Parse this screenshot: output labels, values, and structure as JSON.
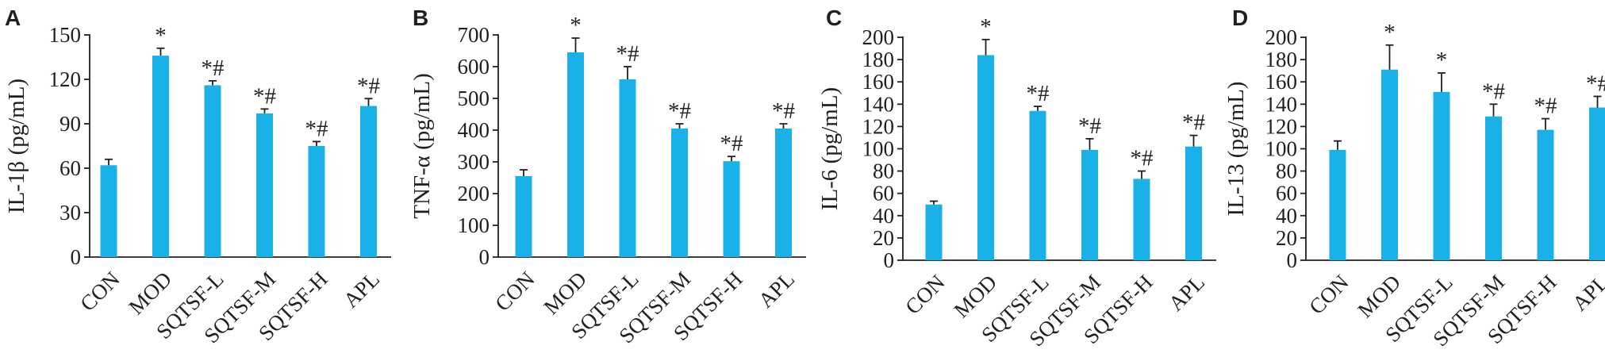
{
  "colors": {
    "bar": "#1ab0e8",
    "axis": "#231f20"
  },
  "chart_data": [
    {
      "panel": "A",
      "type": "bar",
      "ylabel": "IL-1β (pg/mL)",
      "ylim": [
        0,
        150
      ],
      "yticks": [
        0,
        30,
        60,
        90,
        120,
        150
      ],
      "categories": [
        "CON",
        "MOD",
        "SQTSF-L",
        "SQTSF-M",
        "SQTSF-H",
        "APL"
      ],
      "values": [
        62,
        136,
        116,
        97,
        75,
        102
      ],
      "errors": [
        4,
        5,
        3,
        3,
        3,
        5
      ],
      "annotations": [
        "",
        "*",
        "*#",
        "*#",
        "*#",
        "*#"
      ]
    },
    {
      "panel": "B",
      "type": "bar",
      "ylabel": "TNF-α (pg/mL)",
      "ylim": [
        0,
        700
      ],
      "yticks": [
        0,
        100,
        200,
        300,
        400,
        500,
        600,
        700
      ],
      "categories": [
        "CON",
        "MOD",
        "SQTSF-L",
        "SQTSF-M",
        "SQTSF-H",
        "APL"
      ],
      "values": [
        255,
        645,
        560,
        405,
        302,
        405
      ],
      "errors": [
        20,
        45,
        40,
        15,
        15,
        15
      ],
      "annotations": [
        "",
        "*",
        "*#",
        "*#",
        "*#",
        "*#"
      ]
    },
    {
      "panel": "C",
      "type": "bar",
      "ylabel": "IL-6 (pg/mL)",
      "ylim": [
        0,
        200
      ],
      "yticks": [
        0,
        20,
        40,
        60,
        80,
        100,
        120,
        140,
        160,
        180,
        200
      ],
      "categories": [
        "CON",
        "MOD",
        "SQTSF-L",
        "SQTSF-M",
        "SQTSF-H",
        "APL"
      ],
      "values": [
        50,
        184,
        134,
        99,
        73,
        102
      ],
      "errors": [
        3,
        14,
        4,
        10,
        7,
        10
      ],
      "annotations": [
        "",
        "*",
        "*#",
        "*#",
        "*#",
        "*#"
      ]
    },
    {
      "panel": "D",
      "type": "bar",
      "ylabel": "IL-13 (pg/mL)",
      "ylim": [
        0,
        200
      ],
      "yticks": [
        0,
        20,
        40,
        60,
        80,
        100,
        120,
        140,
        160,
        180,
        200
      ],
      "categories": [
        "CON",
        "MOD",
        "SQTSF-L",
        "SQTSF-M",
        "SQTSF-H",
        "APL"
      ],
      "values": [
        99,
        171,
        151,
        129,
        117,
        137
      ],
      "errors": [
        8,
        22,
        17,
        11,
        10,
        10
      ],
      "annotations": [
        "",
        "*",
        "*",
        "*#",
        "*#",
        "*#"
      ]
    }
  ]
}
